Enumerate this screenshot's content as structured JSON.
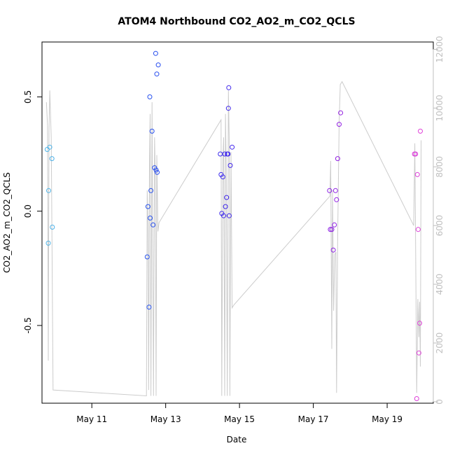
{
  "chart_data": {
    "type": "scatter",
    "title": "ATOM4 Northbound CO2_AO2_m_CO2_QCLS",
    "xlabel": "Date",
    "ylabel": "CO2_AO2_m_CO2_QCLS",
    "xlim": [
      9.65,
      20.25
    ],
    "ylim": [
      -0.84,
      0.74
    ],
    "y2lim": [
      -50,
      12250
    ],
    "x_ticks": [
      {
        "value": 11,
        "label": "May 11"
      },
      {
        "value": 13,
        "label": "May 13"
      },
      {
        "value": 15,
        "label": "May 15"
      },
      {
        "value": 17,
        "label": "May 17"
      },
      {
        "value": 19,
        "label": "May 19"
      }
    ],
    "y_ticks": [
      {
        "value": -0.5,
        "label": "-0.5"
      },
      {
        "value": 0.0,
        "label": "0.0"
      },
      {
        "value": 0.5,
        "label": "0.5"
      }
    ],
    "y2_ticks": [
      {
        "value": 0,
        "label": "0"
      },
      {
        "value": 2000,
        "label": "2000"
      },
      {
        "value": 4000,
        "label": "4000"
      },
      {
        "value": 6000,
        "label": "6000"
      },
      {
        "value": 8000,
        "label": "8000"
      },
      {
        "value": 10000,
        "label": "10000"
      },
      {
        "value": 12000,
        "label": "12000"
      }
    ],
    "grid": false,
    "legend": "none",
    "series": [
      {
        "name": "CO2_AO2_m_CO2_QCLS",
        "axis": "left",
        "marker": "open-circle",
        "color_scale": [
          "#4FB6E8",
          "#1E3CF0",
          "#6A10E8",
          "#E040D8"
        ],
        "points": [
          {
            "x": 9.79,
            "y": 0.27
          },
          {
            "x": 9.83,
            "y": 0.09
          },
          {
            "x": 9.82,
            "y": -0.14
          },
          {
            "x": 9.86,
            "y": 0.28
          },
          {
            "x": 9.92,
            "y": 0.23
          },
          {
            "x": 9.93,
            "y": -0.07
          },
          {
            "x": 12.5,
            "y": -0.2
          },
          {
            "x": 12.52,
            "y": 0.02
          },
          {
            "x": 12.55,
            "y": -0.42
          },
          {
            "x": 12.57,
            "y": 0.5
          },
          {
            "x": 12.6,
            "y": 0.09
          },
          {
            "x": 12.58,
            "y": -0.03
          },
          {
            "x": 12.63,
            "y": 0.35
          },
          {
            "x": 12.66,
            "y": -0.06
          },
          {
            "x": 12.7,
            "y": 0.19
          },
          {
            "x": 12.73,
            "y": 0.69
          },
          {
            "x": 12.74,
            "y": 0.18
          },
          {
            "x": 12.77,
            "y": 0.17
          },
          {
            "x": 12.76,
            "y": 0.6
          },
          {
            "x": 12.8,
            "y": 0.64
          },
          {
            "x": 14.48,
            "y": 0.25
          },
          {
            "x": 14.5,
            "y": 0.16
          },
          {
            "x": 14.52,
            "y": -0.01
          },
          {
            "x": 14.55,
            "y": 0.15
          },
          {
            "x": 14.57,
            "y": -0.02
          },
          {
            "x": 14.6,
            "y": 0.25
          },
          {
            "x": 14.62,
            "y": 0.02
          },
          {
            "x": 14.65,
            "y": 0.06
          },
          {
            "x": 14.67,
            "y": 0.25
          },
          {
            "x": 14.69,
            "y": 0.25
          },
          {
            "x": 14.7,
            "y": 0.45
          },
          {
            "x": 14.72,
            "y": -0.02
          },
          {
            "x": 14.71,
            "y": 0.54
          },
          {
            "x": 14.75,
            "y": 0.2
          },
          {
            "x": 14.8,
            "y": 0.28
          },
          {
            "x": 17.44,
            "y": 0.09
          },
          {
            "x": 17.46,
            "y": -0.08
          },
          {
            "x": 17.5,
            "y": -0.08
          },
          {
            "x": 17.54,
            "y": -0.17
          },
          {
            "x": 17.57,
            "y": -0.06
          },
          {
            "x": 17.6,
            "y": 0.09
          },
          {
            "x": 17.63,
            "y": 0.05
          },
          {
            "x": 17.66,
            "y": 0.23
          },
          {
            "x": 17.7,
            "y": 0.38
          },
          {
            "x": 17.74,
            "y": 0.43
          },
          {
            "x": 19.74,
            "y": 0.25
          },
          {
            "x": 19.77,
            "y": 0.25
          },
          {
            "x": 19.8,
            "y": -0.82
          },
          {
            "x": 19.82,
            "y": 0.16
          },
          {
            "x": 19.84,
            "y": -0.08
          },
          {
            "x": 19.86,
            "y": -0.62
          },
          {
            "x": 19.88,
            "y": -0.49
          },
          {
            "x": 19.9,
            "y": 0.35
          }
        ]
      },
      {
        "name": "secondary",
        "axis": "right",
        "type": "line",
        "color": "#cccccc",
        "points": [
          [
            9.77,
            10200
          ],
          [
            9.8,
            9400
          ],
          [
            9.82,
            1400
          ],
          [
            9.84,
            9200
          ],
          [
            9.86,
            10600
          ],
          [
            9.9,
            9000
          ],
          [
            9.95,
            400
          ],
          [
            12.48,
            200
          ],
          [
            12.5,
            7200
          ],
          [
            12.52,
            6000
          ],
          [
            12.54,
            400
          ],
          [
            12.56,
            8000
          ],
          [
            12.58,
            9800
          ],
          [
            12.6,
            200
          ],
          [
            12.63,
            10200
          ],
          [
            12.65,
            5400
          ],
          [
            12.67,
            200
          ],
          [
            12.7,
            9000
          ],
          [
            12.72,
            7600
          ],
          [
            12.74,
            200
          ],
          [
            12.76,
            8400
          ],
          [
            12.79,
            5800
          ],
          [
            12.82,
            6100
          ],
          [
            14.5,
            9600
          ],
          [
            14.52,
            200
          ],
          [
            14.55,
            8200
          ],
          [
            14.57,
            9000
          ],
          [
            14.6,
            200
          ],
          [
            14.62,
            9800
          ],
          [
            14.64,
            8000
          ],
          [
            14.67,
            200
          ],
          [
            14.7,
            10600
          ],
          [
            14.72,
            9000
          ],
          [
            14.74,
            200
          ],
          [
            14.77,
            8500
          ],
          [
            14.8,
            3200
          ],
          [
            14.85,
            3300
          ],
          [
            17.45,
            7000
          ],
          [
            17.47,
            8200
          ],
          [
            17.5,
            1800
          ],
          [
            17.52,
            7200
          ],
          [
            17.55,
            3100
          ],
          [
            17.58,
            5000
          ],
          [
            17.61,
            5100
          ],
          [
            17.63,
            300
          ],
          [
            17.66,
            5600
          ],
          [
            17.7,
            9500
          ],
          [
            17.73,
            10800
          ],
          [
            17.78,
            10900
          ],
          [
            19.72,
            6000
          ],
          [
            19.75,
            8800
          ],
          [
            19.77,
            5400
          ],
          [
            19.8,
            300
          ],
          [
            19.83,
            3500
          ],
          [
            19.86,
            2200
          ],
          [
            19.88,
            3400
          ],
          [
            19.9,
            1200
          ],
          [
            19.92,
            8900
          ]
        ]
      }
    ]
  }
}
